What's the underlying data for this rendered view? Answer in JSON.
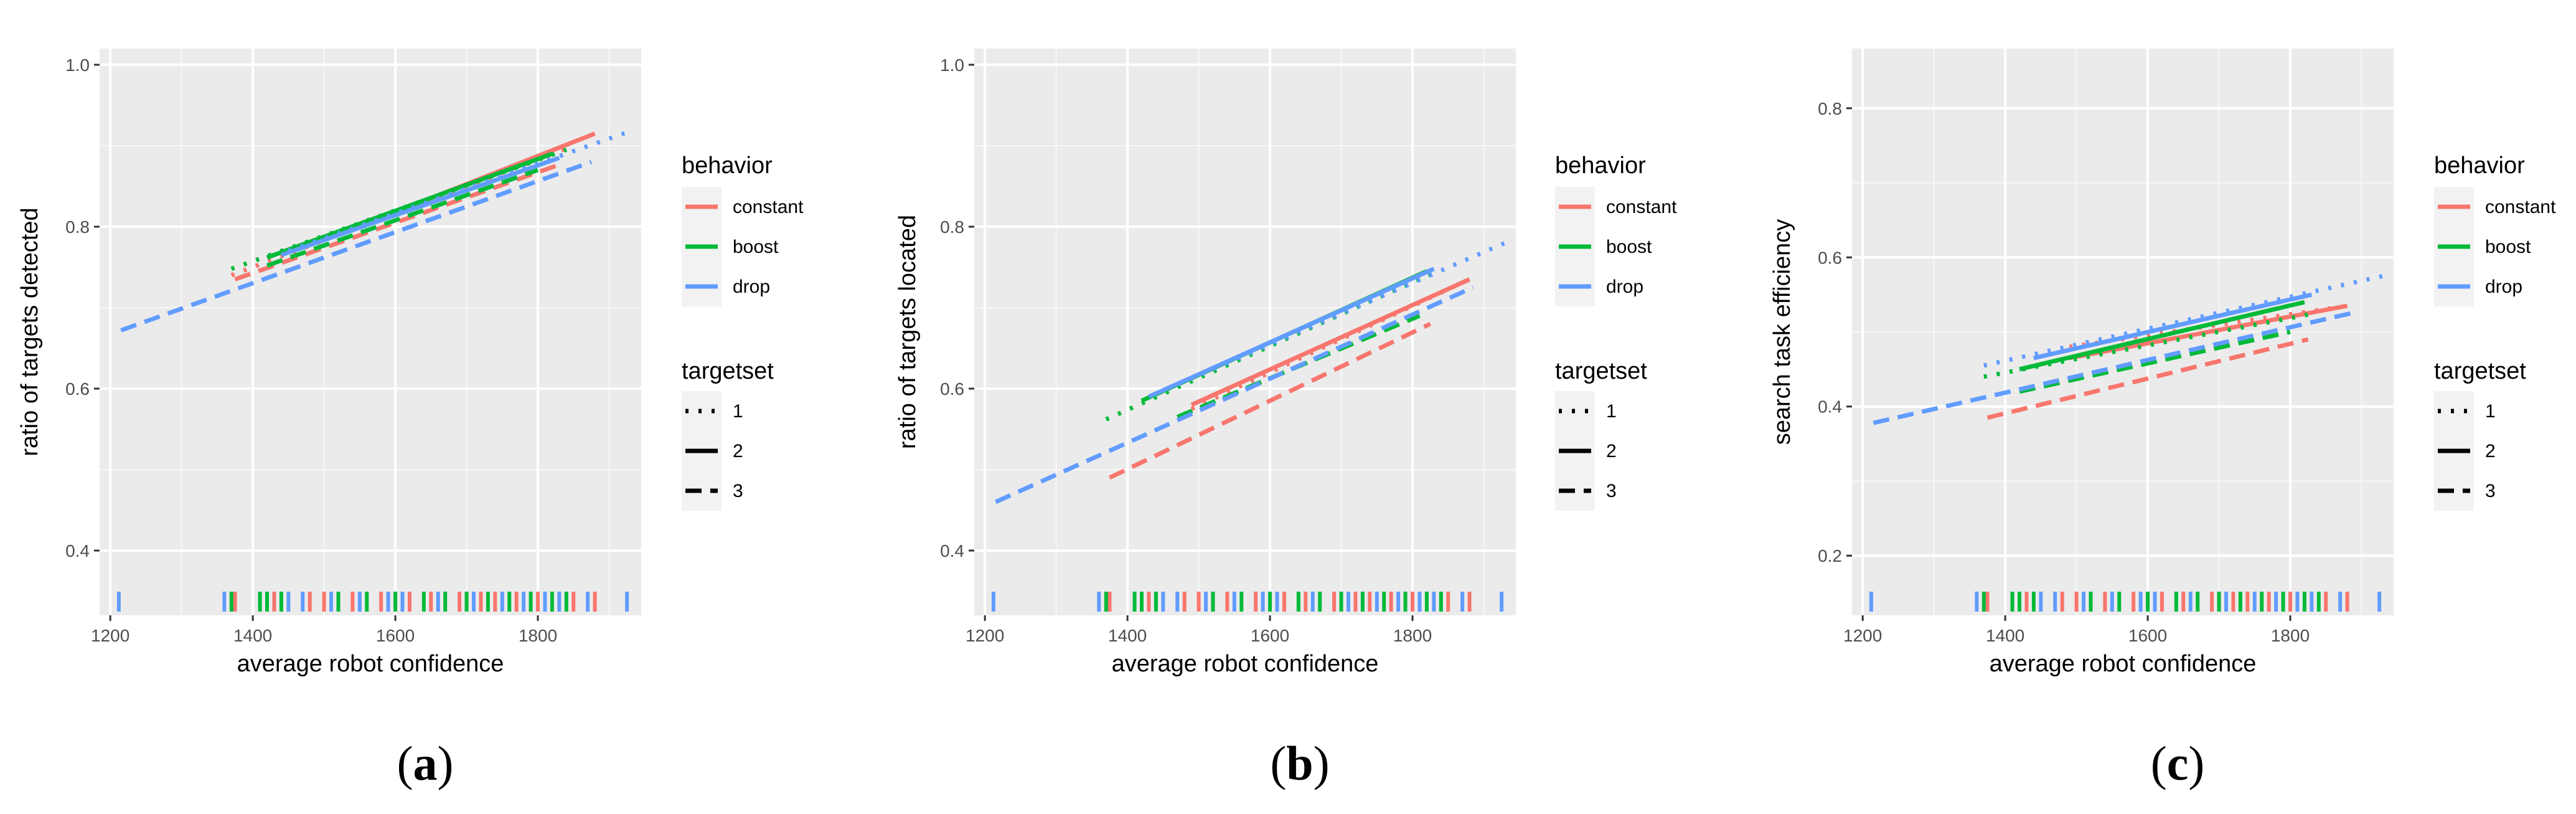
{
  "legend": {
    "behavior_title": "behavior",
    "behavior_items": [
      {
        "label": "constant",
        "color": "#F8766D"
      },
      {
        "label": "boost",
        "color": "#00BA38"
      },
      {
        "label": "drop",
        "color": "#619CFF"
      }
    ],
    "targetset_title": "targetset",
    "targetset_items": [
      {
        "label": "1",
        "linetype": "dotted"
      },
      {
        "label": "2",
        "linetype": "solid"
      },
      {
        "label": "3",
        "linetype": "dashed"
      }
    ]
  },
  "chart_data": [
    {
      "type": "line",
      "panel_label": "a",
      "title": "",
      "xlabel": "average robot confidence",
      "ylabel": "ratio of targets detected",
      "xlim": [
        1185,
        1945
      ],
      "ylim": [
        0.32,
        1.02
      ],
      "xticks": [
        1200,
        1400,
        1600,
        1800
      ],
      "yticks": [
        0.4,
        0.6,
        0.8,
        1.0
      ],
      "ytick_labels": [
        "0.4",
        "0.6",
        "0.8",
        "1.0"
      ],
      "series": [
        {
          "behavior": "constant",
          "targetset": "1",
          "x": [
            1370,
            1850
          ],
          "y": [
            0.74,
            0.9
          ]
        },
        {
          "behavior": "constant",
          "targetset": "2",
          "x": [
            1490,
            1880
          ],
          "y": [
            0.78,
            0.915
          ]
        },
        {
          "behavior": "constant",
          "targetset": "3",
          "x": [
            1375,
            1825
          ],
          "y": [
            0.735,
            0.875
          ]
        },
        {
          "behavior": "boost",
          "targetset": "1",
          "x": [
            1370,
            1840
          ],
          "y": [
            0.748,
            0.895
          ]
        },
        {
          "behavior": "boost",
          "targetset": "2",
          "x": [
            1420,
            1820
          ],
          "y": [
            0.762,
            0.89
          ]
        },
        {
          "behavior": "boost",
          "targetset": "3",
          "x": [
            1420,
            1800
          ],
          "y": [
            0.752,
            0.87
          ]
        },
        {
          "behavior": "drop",
          "targetset": "1",
          "x": [
            1450,
            1930
          ],
          "y": [
            0.77,
            0.918
          ]
        },
        {
          "behavior": "drop",
          "targetset": "2",
          "x": [
            1440,
            1830
          ],
          "y": [
            0.765,
            0.885
          ]
        },
        {
          "behavior": "drop",
          "targetset": "3",
          "x": [
            1215,
            1875
          ],
          "y": [
            0.672,
            0.88
          ]
        }
      ],
      "rug": {
        "constant": [
          1375,
          1430,
          1480,
          1500,
          1540,
          1580,
          1620,
          1650,
          1690,
          1720,
          1740,
          1770,
          1800,
          1850,
          1880
        ],
        "boost": [
          1370,
          1410,
          1420,
          1440,
          1520,
          1560,
          1600,
          1640,
          1670,
          1700,
          1730,
          1760,
          1790,
          1820,
          1840
        ],
        "drop": [
          1212,
          1360,
          1450,
          1470,
          1510,
          1550,
          1590,
          1610,
          1660,
          1710,
          1750,
          1780,
          1810,
          1830,
          1870,
          1925
        ]
      }
    },
    {
      "type": "line",
      "panel_label": "b",
      "title": "",
      "xlabel": "average robot confidence",
      "ylabel": "ratio of targets located",
      "xlim": [
        1185,
        1945
      ],
      "ylim": [
        0.32,
        1.02
      ],
      "xticks": [
        1200,
        1400,
        1600,
        1800
      ],
      "yticks": [
        0.4,
        0.6,
        0.8,
        1.0
      ],
      "ytick_labels": [
        "0.4",
        "0.6",
        "0.8",
        "1.0"
      ],
      "series": [
        {
          "behavior": "constant",
          "targetset": "1",
          "x": [
            1490,
            1880
          ],
          "y": [
            0.575,
            0.735
          ]
        },
        {
          "behavior": "constant",
          "targetset": "2",
          "x": [
            1490,
            1880
          ],
          "y": [
            0.58,
            0.735
          ]
        },
        {
          "behavior": "constant",
          "targetset": "3",
          "x": [
            1375,
            1825
          ],
          "y": [
            0.49,
            0.68
          ]
        },
        {
          "behavior": "boost",
          "targetset": "1",
          "x": [
            1370,
            1835
          ],
          "y": [
            0.562,
            0.745
          ]
        },
        {
          "behavior": "boost",
          "targetset": "2",
          "x": [
            1420,
            1820
          ],
          "y": [
            0.585,
            0.745
          ]
        },
        {
          "behavior": "boost",
          "targetset": "3",
          "x": [
            1470,
            1810
          ],
          "y": [
            0.565,
            0.69
          ]
        },
        {
          "behavior": "drop",
          "targetset": "1",
          "x": [
            1470,
            1930
          ],
          "y": [
            0.605,
            0.78
          ]
        },
        {
          "behavior": "drop",
          "targetset": "2",
          "x": [
            1430,
            1830
          ],
          "y": [
            0.59,
            0.748
          ]
        },
        {
          "behavior": "drop",
          "targetset": "3",
          "x": [
            1215,
            1885
          ],
          "y": [
            0.46,
            0.725
          ]
        }
      ],
      "rug": {
        "constant": [
          1375,
          1430,
          1480,
          1500,
          1540,
          1580,
          1620,
          1650,
          1690,
          1720,
          1740,
          1770,
          1800,
          1850,
          1880
        ],
        "boost": [
          1370,
          1410,
          1420,
          1440,
          1520,
          1560,
          1600,
          1640,
          1670,
          1700,
          1730,
          1760,
          1790,
          1820,
          1840
        ],
        "drop": [
          1212,
          1360,
          1450,
          1470,
          1510,
          1550,
          1590,
          1610,
          1660,
          1710,
          1750,
          1780,
          1810,
          1830,
          1870,
          1925
        ]
      }
    },
    {
      "type": "line",
      "panel_label": "c",
      "title": "",
      "xlabel": "average robot confidence",
      "ylabel": "search task efficiency",
      "xlim": [
        1185,
        1945
      ],
      "ylim": [
        0.12,
        0.88
      ],
      "xticks": [
        1200,
        1400,
        1600,
        1800
      ],
      "yticks": [
        0.2,
        0.4,
        0.6,
        0.8
      ],
      "ytick_labels": [
        "0.2",
        "0.4",
        "0.6",
        "0.8"
      ],
      "series": [
        {
          "behavior": "constant",
          "targetset": "1",
          "x": [
            1490,
            1880
          ],
          "y": [
            0.48,
            0.535
          ]
        },
        {
          "behavior": "constant",
          "targetset": "2",
          "x": [
            1490,
            1880
          ],
          "y": [
            0.465,
            0.535
          ]
        },
        {
          "behavior": "constant",
          "targetset": "3",
          "x": [
            1375,
            1825
          ],
          "y": [
            0.385,
            0.49
          ]
        },
        {
          "behavior": "boost",
          "targetset": "1",
          "x": [
            1370,
            1835
          ],
          "y": [
            0.44,
            0.525
          ]
        },
        {
          "behavior": "boost",
          "targetset": "2",
          "x": [
            1420,
            1820
          ],
          "y": [
            0.45,
            0.54
          ]
        },
        {
          "behavior": "boost",
          "targetset": "3",
          "x": [
            1420,
            1800
          ],
          "y": [
            0.42,
            0.5
          ]
        },
        {
          "behavior": "drop",
          "targetset": "1",
          "x": [
            1370,
            1930
          ],
          "y": [
            0.455,
            0.575
          ]
        },
        {
          "behavior": "drop",
          "targetset": "2",
          "x": [
            1440,
            1830
          ],
          "y": [
            0.465,
            0.55
          ]
        },
        {
          "behavior": "drop",
          "targetset": "3",
          "x": [
            1215,
            1885
          ],
          "y": [
            0.378,
            0.525
          ]
        }
      ],
      "rug": {
        "constant": [
          1375,
          1430,
          1480,
          1500,
          1540,
          1580,
          1620,
          1650,
          1690,
          1720,
          1740,
          1770,
          1800,
          1850,
          1880
        ],
        "boost": [
          1370,
          1410,
          1420,
          1440,
          1520,
          1560,
          1600,
          1640,
          1670,
          1700,
          1730,
          1760,
          1790,
          1820,
          1840
        ],
        "drop": [
          1212,
          1360,
          1450,
          1470,
          1510,
          1550,
          1590,
          1610,
          1660,
          1710,
          1750,
          1780,
          1810,
          1830,
          1870,
          1925
        ]
      }
    }
  ]
}
